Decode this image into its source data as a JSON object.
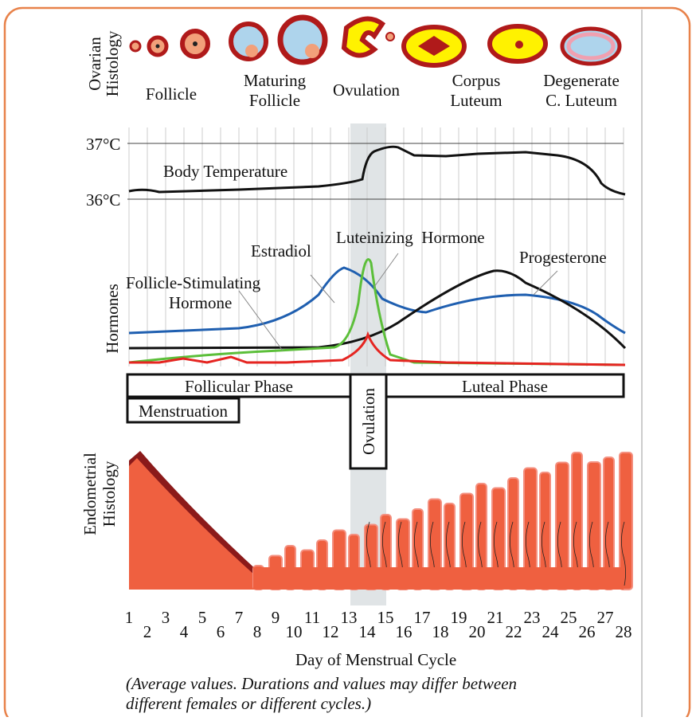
{
  "ovarian_histology": {
    "title_lines": [
      "Ovarian",
      "Histology"
    ],
    "stages": [
      {
        "lines": [
          "Follicle"
        ]
      },
      {
        "lines": [
          "Maturing",
          "Follicle"
        ]
      },
      {
        "lines": [
          "Ovulation"
        ]
      },
      {
        "lines": [
          "Corpus",
          "Luteum"
        ]
      },
      {
        "lines": [
          "Degenerate",
          "C. Luteum"
        ]
      }
    ]
  },
  "temperature": {
    "label": "Body Temperature",
    "ticks": [
      "37°C",
      "36°C"
    ]
  },
  "hormones": {
    "title": "Hormones",
    "estradiol": "Estradiol",
    "lh": "Luteinizing  Hormone",
    "progesterone": "Progesterone",
    "fsh_lines": [
      "Follicle-Stimulating",
      "Hormone"
    ]
  },
  "phases": {
    "follicular": "Follicular Phase",
    "luteal": "Luteal Phase",
    "menstruation": "Menstruation",
    "ovulation": "Ovulation"
  },
  "endometrial_histology": {
    "title_lines": [
      "Endometrial",
      "Histology"
    ]
  },
  "x_axis": {
    "days": [
      1,
      2,
      3,
      4,
      5,
      6,
      7,
      8,
      9,
      10,
      11,
      12,
      13,
      14,
      15,
      16,
      17,
      18,
      19,
      20,
      21,
      22,
      23,
      24,
      25,
      26,
      27,
      28
    ],
    "title": "Day of Menstrual Cycle"
  },
  "note_lines": [
    "(Average values. Durations and values may differ between",
    "different females or different cycles.)"
  ]
}
